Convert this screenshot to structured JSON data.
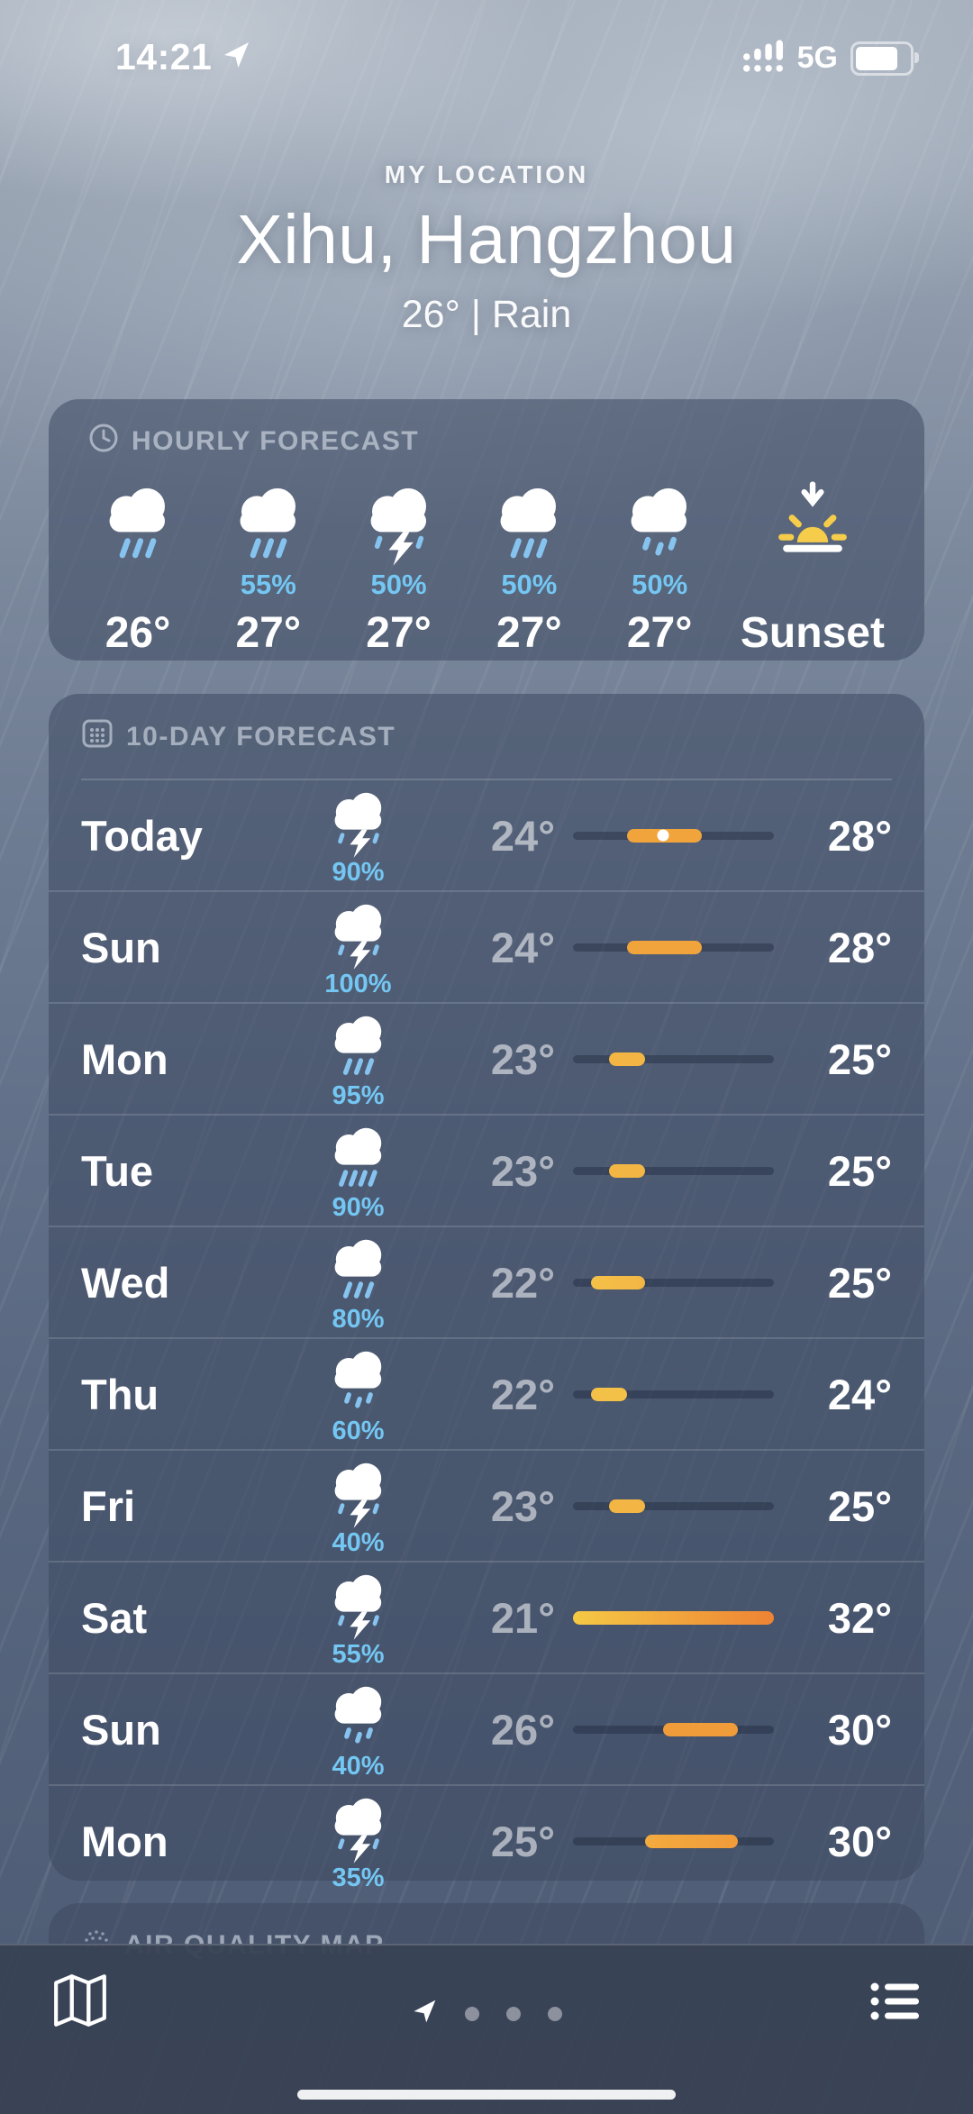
{
  "status_bar": {
    "time": "14:21",
    "network": "5G"
  },
  "header": {
    "label": "MY LOCATION",
    "city": "Xihu, Hangzhou",
    "summary": "26° | Rain"
  },
  "hourly": {
    "title": "HOURLY FORECAST",
    "columns": [
      {
        "icon": "rain",
        "percent": "",
        "temp": "26°"
      },
      {
        "icon": "rain",
        "percent": "55%",
        "temp": "27°"
      },
      {
        "icon": "thunder",
        "percent": "50%",
        "temp": "27°"
      },
      {
        "icon": "rain",
        "percent": "50%",
        "temp": "27°"
      },
      {
        "icon": "rain-light",
        "percent": "50%",
        "temp": "27°"
      },
      {
        "icon": "sunset",
        "percent": "",
        "temp": "Sunset"
      }
    ]
  },
  "ten_day": {
    "title": "10-DAY FORECAST",
    "temp_scale": {
      "min": 21,
      "max": 32
    },
    "rows": [
      {
        "day": "Today",
        "icon": "thunder",
        "percent": "90%",
        "low": "24°",
        "high": "28°",
        "bar": {
          "start_pct": 27,
          "end_pct": 64,
          "color_start": "#f2a43c",
          "color_end": "#f2a43c",
          "dot_pct": 45
        }
      },
      {
        "day": "Sun",
        "icon": "thunder",
        "percent": "100%",
        "low": "24°",
        "high": "28°",
        "bar": {
          "start_pct": 27,
          "end_pct": 64,
          "color_start": "#f2a43c",
          "color_end": "#f2a43c"
        }
      },
      {
        "day": "Mon",
        "icon": "rain",
        "percent": "95%",
        "low": "23°",
        "high": "25°",
        "bar": {
          "start_pct": 18,
          "end_pct": 36,
          "color_start": "#f3b644",
          "color_end": "#f3b644"
        }
      },
      {
        "day": "Tue",
        "icon": "rain-heavy",
        "percent": "90%",
        "low": "23°",
        "high": "25°",
        "bar": {
          "start_pct": 18,
          "end_pct": 36,
          "color_start": "#f3b644",
          "color_end": "#f3b644"
        }
      },
      {
        "day": "Wed",
        "icon": "rain",
        "percent": "80%",
        "low": "22°",
        "high": "25°",
        "bar": {
          "start_pct": 9,
          "end_pct": 36,
          "color_start": "#f4c148",
          "color_end": "#f3b644"
        }
      },
      {
        "day": "Thu",
        "icon": "rain-light",
        "percent": "60%",
        "low": "22°",
        "high": "24°",
        "bar": {
          "start_pct": 9,
          "end_pct": 27,
          "color_start": "#f4c148",
          "color_end": "#f4c148"
        }
      },
      {
        "day": "Fri",
        "icon": "thunder",
        "percent": "40%",
        "low": "23°",
        "high": "25°",
        "bar": {
          "start_pct": 18,
          "end_pct": 36,
          "color_start": "#f3b644",
          "color_end": "#f3b644"
        }
      },
      {
        "day": "Sat",
        "icon": "thunder",
        "percent": "55%",
        "low": "21°",
        "high": "32°",
        "bar": {
          "start_pct": 0,
          "end_pct": 100,
          "color_start": "#f5c945",
          "color_end": "#ee8334"
        }
      },
      {
        "day": "Sun",
        "icon": "rain-light",
        "percent": "40%",
        "low": "26°",
        "high": "30°",
        "bar": {
          "start_pct": 45,
          "end_pct": 82,
          "color_start": "#f19c3a",
          "color_end": "#f19c3a"
        }
      },
      {
        "day": "Mon",
        "icon": "thunder",
        "percent": "35%",
        "low": "25°",
        "high": "30°",
        "bar": {
          "start_pct": 36,
          "end_pct": 82,
          "color_start": "#f3ab3e",
          "color_end": "#f19c3a"
        }
      }
    ]
  },
  "air_quality": {
    "title": "AIR QUALITY MAP"
  },
  "colors": {
    "precip_blue": "#74c7f3",
    "bar_track": "rgba(20,30,48,0.35)",
    "sun_yellow": "#f6cd4b"
  }
}
